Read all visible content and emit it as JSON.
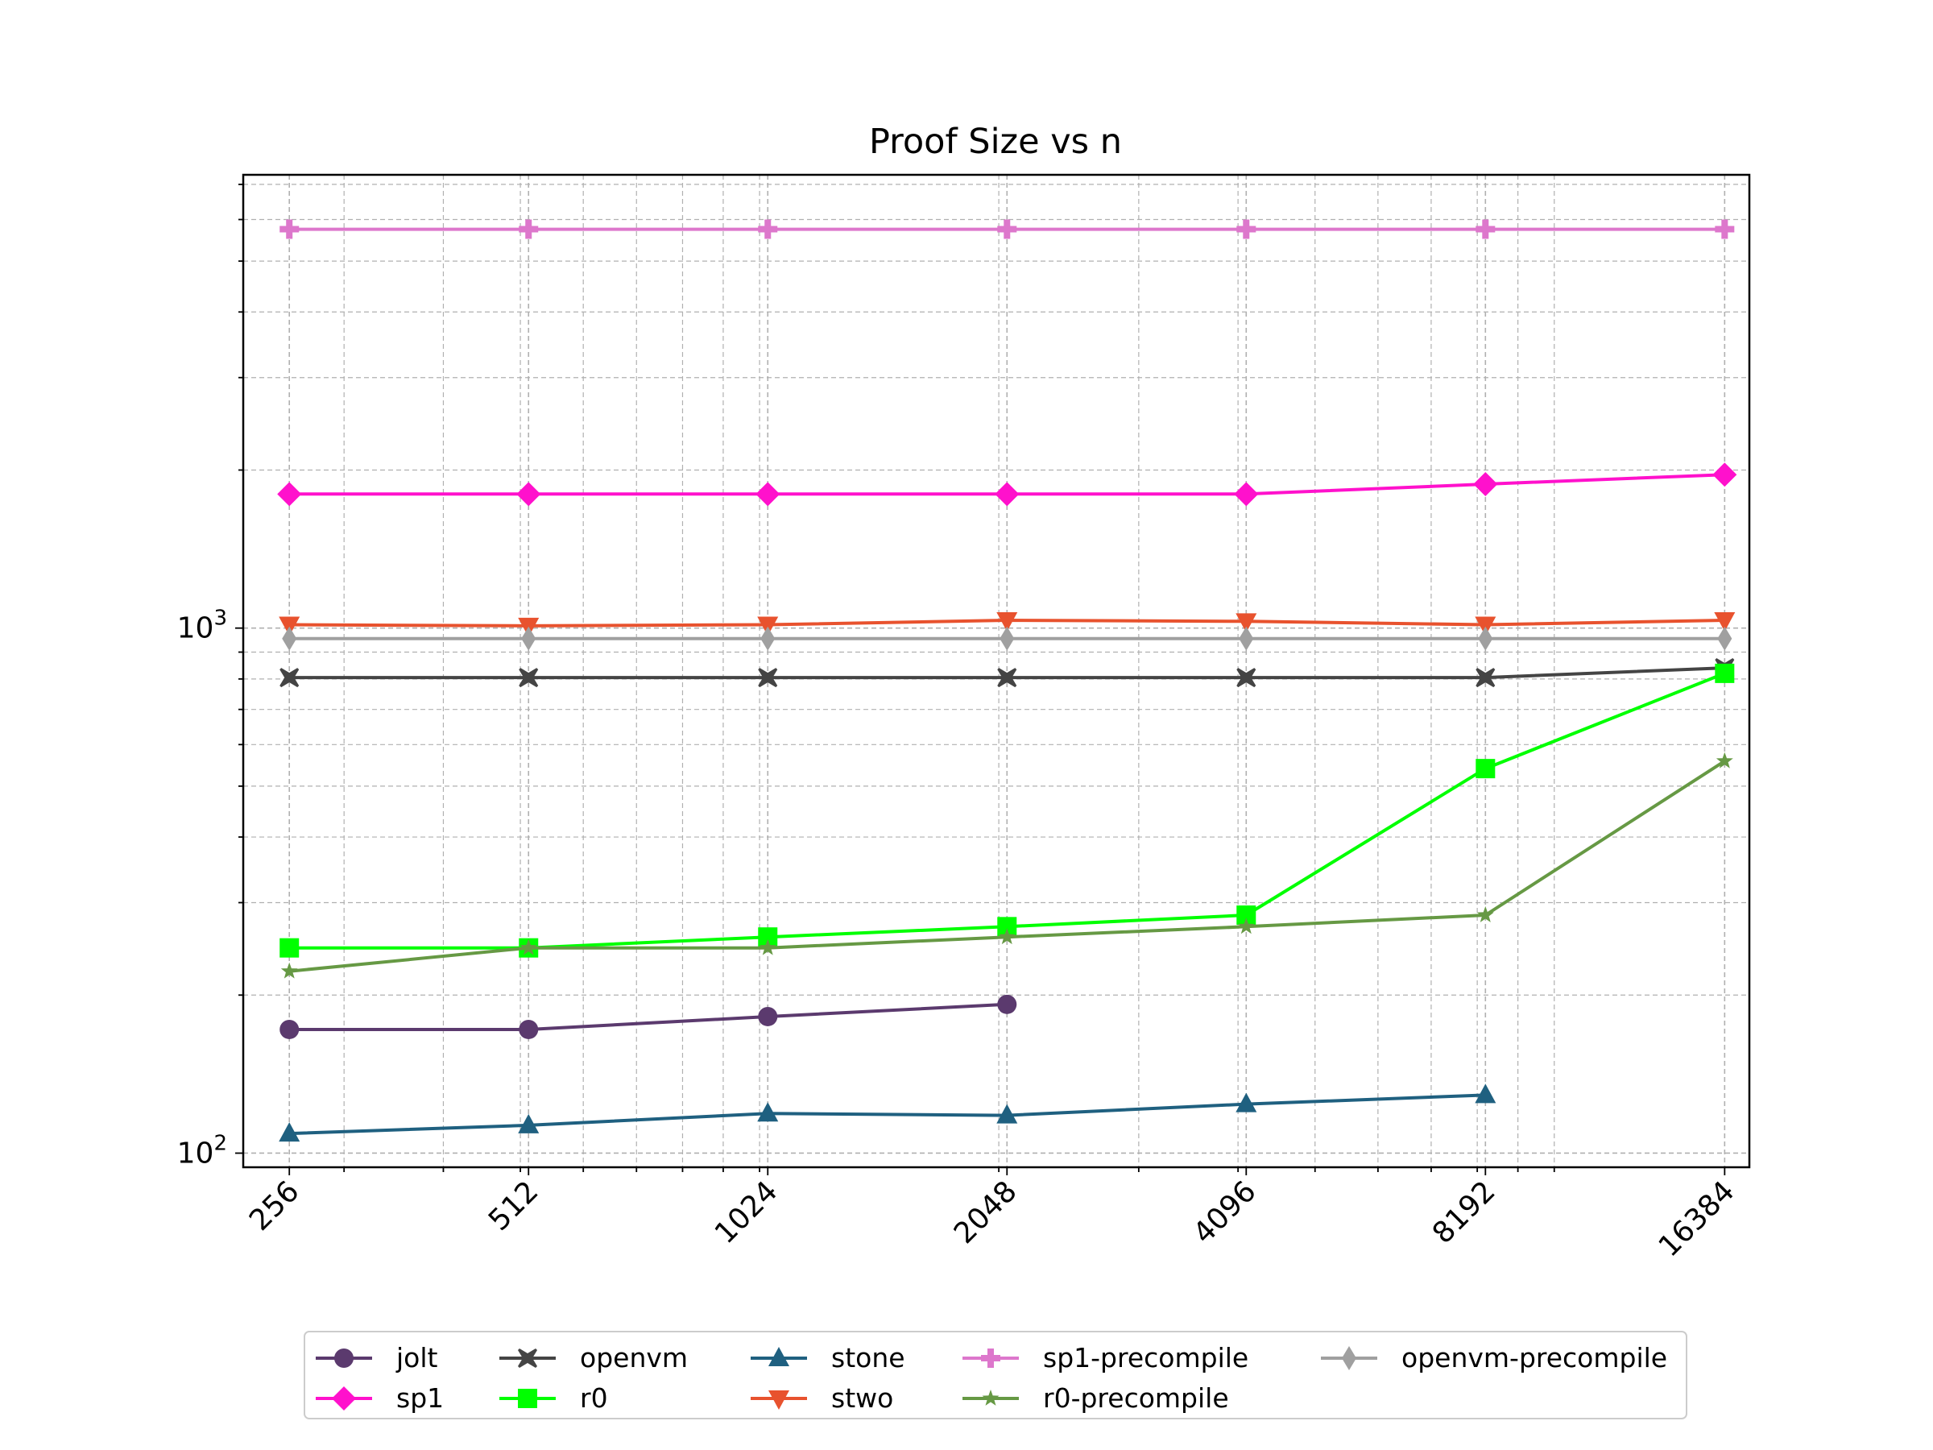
{
  "chart_data": {
    "type": "line",
    "title": "Proof Size vs n",
    "xlabel": "",
    "ylabel": "",
    "x_scale": "log2",
    "y_scale": "log",
    "categories": [
      "256",
      "512",
      "1024",
      "2048",
      "4096",
      "8192",
      "16384"
    ],
    "x": [
      256,
      512,
      1024,
      2048,
      4096,
      8192,
      16384
    ],
    "xlim": [
      224,
      17600
    ],
    "ylim": [
      94,
      7300
    ],
    "y_tick_labels": [
      {
        "value": 100,
        "base": "10",
        "exp": "2"
      },
      {
        "value": 1000,
        "base": "10",
        "exp": "3"
      }
    ],
    "grid": true,
    "legend_position": "bottom-center",
    "series": [
      {
        "name": "jolt",
        "color": "#5b3a6e",
        "marker": "circle",
        "values": [
          172,
          172,
          182,
          192,
          null,
          null,
          null
        ]
      },
      {
        "name": "sp1",
        "color": "#ff11cc",
        "marker": "diamond",
        "values": [
          1800,
          1800,
          1800,
          1800,
          1800,
          1880,
          1960
        ]
      },
      {
        "name": "openvm",
        "color": "#444444",
        "marker": "x",
        "values": [
          805,
          805,
          805,
          805,
          805,
          805,
          840
        ]
      },
      {
        "name": "r0",
        "color": "#00ff00",
        "marker": "square",
        "values": [
          246,
          246,
          258,
          270,
          284,
          540,
          820
        ]
      },
      {
        "name": "stone",
        "color": "#1f6080",
        "marker": "triangle-up",
        "values": [
          109,
          113,
          119,
          118,
          124,
          129,
          null
        ]
      },
      {
        "name": "stwo",
        "color": "#e8522e",
        "marker": "triangle-down",
        "values": [
          1015,
          1010,
          1015,
          1035,
          1030,
          1015,
          1035
        ]
      },
      {
        "name": "sp1-precompile",
        "color": "#dd77cc",
        "marker": "plus",
        "values": [
          5750,
          5750,
          5750,
          5750,
          5750,
          5750,
          5750
        ]
      },
      {
        "name": "r0-precompile",
        "color": "#669944",
        "marker": "star",
        "values": [
          222,
          246,
          246,
          258,
          270,
          284,
          558
        ]
      },
      {
        "name": "openvm-precompile",
        "color": "#a0a0a0",
        "marker": "thin-diamond",
        "values": [
          955,
          955,
          955,
          955,
          955,
          955,
          955
        ]
      }
    ]
  }
}
